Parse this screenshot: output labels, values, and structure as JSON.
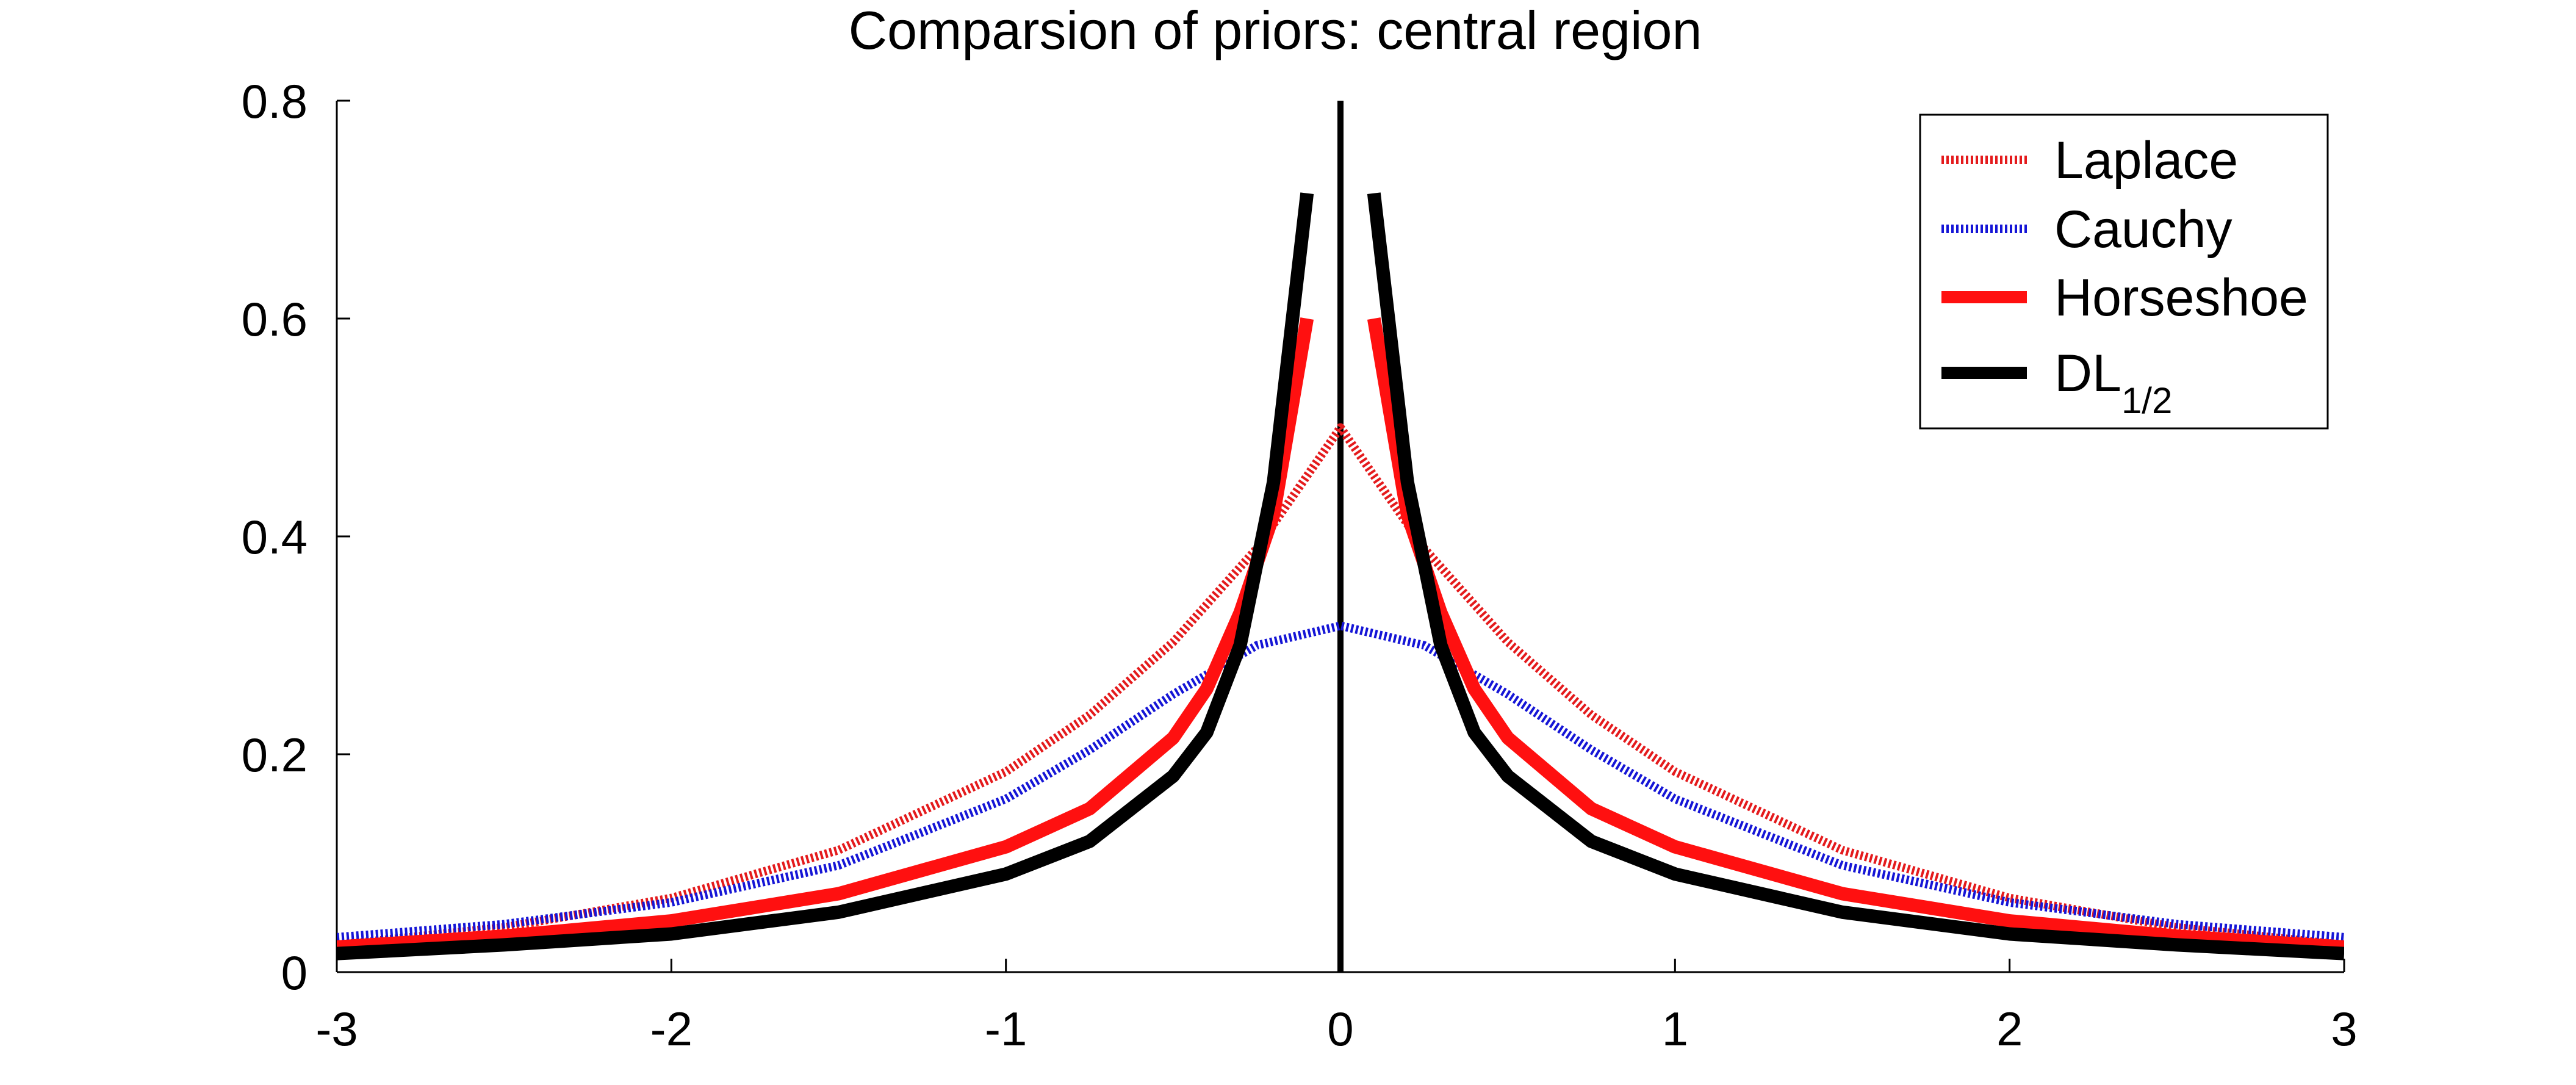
{
  "chart_data": {
    "type": "line",
    "title": "Comparsion of priors: central region",
    "xlabel": "",
    "ylabel": "",
    "xlim": [
      -3,
      3
    ],
    "ylim": [
      0,
      0.8
    ],
    "xticks": [
      -3,
      -2,
      -1,
      0,
      1,
      2,
      3
    ],
    "yticks": [
      0,
      0.2,
      0.4,
      0.6,
      0.8
    ],
    "xtick_labels": [
      "-3",
      "-2",
      "-1",
      "0",
      "1",
      "2",
      "3"
    ],
    "ytick_labels": [
      "0",
      "0.2",
      "0.4",
      "0.6",
      "0.8"
    ],
    "legend_position": "top-right",
    "vertical_line_at_x": 0,
    "series": [
      {
        "name": "Laplace",
        "label": "Laplace",
        "color": "#e41a1c",
        "style": "dotted",
        "x": [
          -3,
          -2.5,
          -2,
          -1.5,
          -1,
          -0.75,
          -0.5,
          -0.25,
          0,
          0.25,
          0.5,
          0.75,
          1,
          1.5,
          2,
          2.5,
          3
        ],
        "y": [
          0.025,
          0.041,
          0.068,
          0.112,
          0.184,
          0.236,
          0.303,
          0.389,
          0.5,
          0.389,
          0.303,
          0.236,
          0.184,
          0.112,
          0.068,
          0.041,
          0.025
        ]
      },
      {
        "name": "Cauchy",
        "label": "Cauchy",
        "color": "#1515d6",
        "style": "dotted",
        "x": [
          -3,
          -2.5,
          -2,
          -1.5,
          -1,
          -0.75,
          -0.5,
          -0.25,
          0,
          0.25,
          0.5,
          0.75,
          1,
          1.5,
          2,
          2.5,
          3
        ],
        "y": [
          0.032,
          0.044,
          0.064,
          0.098,
          0.159,
          0.204,
          0.255,
          0.3,
          0.318,
          0.3,
          0.255,
          0.204,
          0.159,
          0.098,
          0.064,
          0.044,
          0.032
        ]
      },
      {
        "name": "Horseshoe",
        "label": "Horseshoe",
        "color": "#ff1010",
        "style": "solid",
        "x": [
          -3,
          -2.5,
          -2,
          -1.5,
          -1,
          -0.75,
          -0.5,
          -0.4,
          -0.3,
          -0.2,
          -0.1,
          0.1,
          0.2,
          0.3,
          0.4,
          0.5,
          0.75,
          1,
          1.5,
          2,
          2.5,
          3
        ],
        "y": [
          0.023,
          0.033,
          0.047,
          0.072,
          0.115,
          0.15,
          0.215,
          0.26,
          0.33,
          0.42,
          0.6,
          0.6,
          0.42,
          0.33,
          0.26,
          0.215,
          0.15,
          0.115,
          0.072,
          0.047,
          0.033,
          0.023
        ],
        "break_between_index": [
          10,
          11
        ]
      },
      {
        "name": "DL_1/2",
        "label": "DL",
        "label_subscript": "1/2",
        "color": "#000000",
        "style": "solid",
        "x": [
          -3,
          -2.5,
          -2,
          -1.5,
          -1,
          -0.75,
          -0.5,
          -0.4,
          -0.3,
          -0.2,
          -0.1,
          0.1,
          0.2,
          0.3,
          0.4,
          0.5,
          0.75,
          1,
          1.5,
          2,
          2.5,
          3
        ],
        "y": [
          0.017,
          0.025,
          0.035,
          0.055,
          0.09,
          0.12,
          0.18,
          0.22,
          0.3,
          0.45,
          0.715,
          0.715,
          0.45,
          0.3,
          0.22,
          0.18,
          0.12,
          0.09,
          0.055,
          0.035,
          0.025,
          0.017
        ],
        "break_between_index": [
          10,
          11
        ]
      }
    ]
  }
}
